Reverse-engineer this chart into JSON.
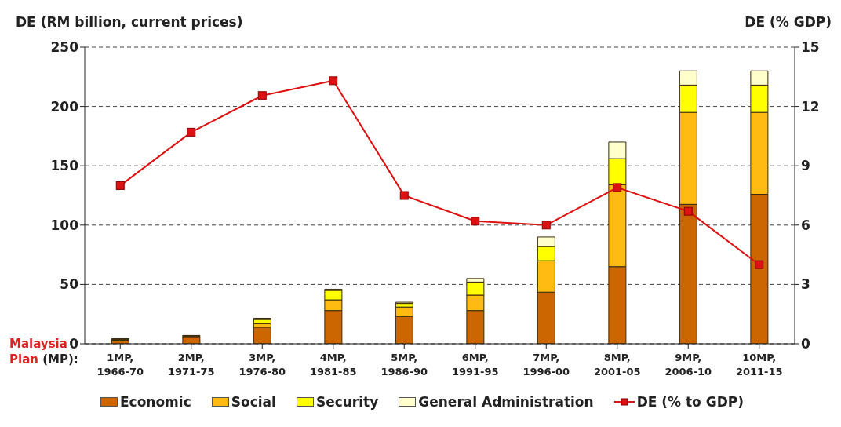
{
  "chart_data": {
    "type": "bar",
    "stacked": true,
    "ylabel": "DE (RM billion, current prices)",
    "y2label": "DE (% GDP)",
    "xlabel": "Malaysia Plan (MP):",
    "categories": [
      "1MP, 1966-70",
      "2MP, 1971-75",
      "3MP, 1976-80",
      "4MP, 1981-85",
      "5MP, 1986-90",
      "6MP, 1991-95",
      "7MP, 1996-00",
      "8MP, 2001-05",
      "9MP, 2006-10",
      "10MP, 2011-15"
    ],
    "series": [
      {
        "name": "Economic",
        "color": "#cc6600",
        "values": [
          3,
          6,
          14,
          28,
          23,
          28,
          43.5,
          65,
          117.5,
          126
        ]
      },
      {
        "name": "Social",
        "color": "#ffbb11",
        "values": [
          0.5,
          0.5,
          3,
          9,
          8,
          13,
          26.5,
          69,
          77.5,
          69
        ]
      },
      {
        "name": "Security",
        "color": "#ffff00",
        "values": [
          0.5,
          0.3,
          3.5,
          8,
          3,
          11,
          12,
          22,
          23,
          23
        ]
      },
      {
        "name": "General Administration",
        "color": "#ffffcc",
        "values": [
          0.2,
          0.2,
          1,
          1,
          1,
          3,
          8,
          14,
          12,
          12
        ]
      },
      {
        "name": "DE (% to GDP)",
        "type": "line",
        "axis": "y2",
        "color": "#dd1111",
        "marker": "square",
        "values": [
          8.0,
          10.7,
          12.55,
          13.3,
          7.5,
          6.2,
          6.0,
          7.9,
          6.7,
          4.0
        ]
      }
    ],
    "ylim": [
      0,
      250
    ],
    "yticks": [
      0,
      50,
      100,
      150,
      200,
      250
    ],
    "y2lim": [
      0,
      15
    ],
    "y2ticks": [
      0,
      3,
      6,
      9,
      12,
      15
    ],
    "grid": "y",
    "legend": "bottom"
  }
}
